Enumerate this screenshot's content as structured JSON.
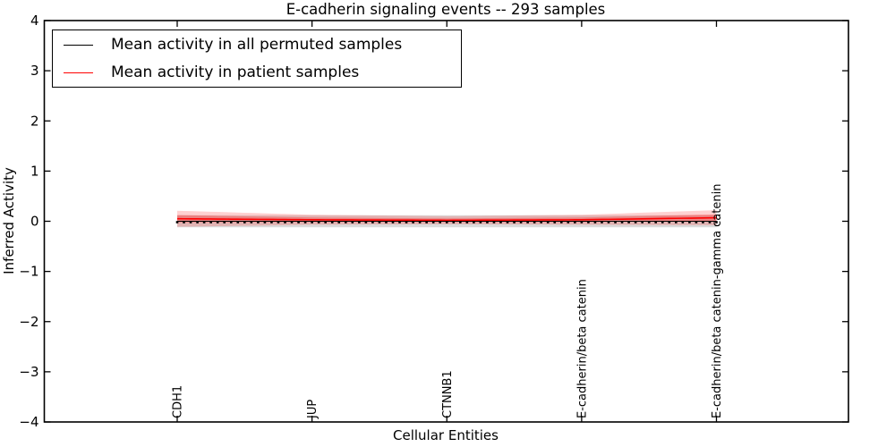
{
  "figure": {
    "title": "E-cadherin signaling events -- 293 samples",
    "background_color": "#ffffff",
    "frame_color": "#000000"
  },
  "chart_data": {
    "type": "line",
    "title": "E-cadherin signaling events -- 293 samples",
    "xlabel": "Cellular Entities",
    "ylabel": "Inferred Activity",
    "ylim": [
      -4,
      4
    ],
    "yticks": [
      4,
      3,
      2,
      1,
      0,
      -1,
      -2,
      -3,
      -4
    ],
    "grid": false,
    "n_entities": 81,
    "labeled_entities": [
      {
        "label": "CDH1",
        "index": 0
      },
      {
        "label": "JUP",
        "index": 20
      },
      {
        "label": "CTNNB1",
        "index": 40
      },
      {
        "label": "E-cadherin/beta catenin",
        "index": 60
      },
      {
        "label": "E-cadherin/beta catenin-gamma catenin",
        "index": 80
      }
    ],
    "series": [
      {
        "name": "Mean activity in all permuted samples",
        "color": "#000000",
        "marker": "square",
        "values_at_labeled_entities": [
          0.0,
          0.0,
          0.0,
          0.0,
          0.0
        ],
        "band_halfwidth_at_labeled_entities": [
          0.12,
          0.12,
          0.12,
          0.12,
          0.12
        ],
        "band_color": "#888888",
        "band_alpha": 0.3
      },
      {
        "name": "Mean activity in patient samples",
        "color": "#ff0000",
        "marker": "none",
        "values_at_labeled_entities": [
          0.05,
          0.03,
          0.02,
          0.03,
          0.07
        ],
        "band_halfwidth_at_labeled_entities": [
          0.16,
          0.1,
          0.08,
          0.1,
          0.15
        ],
        "band_color": "#ff0000",
        "band_alpha": 0.18
      }
    ],
    "legend": {
      "position": "upper left",
      "items": [
        {
          "label": "Mean activity in all permuted samples",
          "color": "#000000"
        },
        {
          "label": "Mean activity in patient samples",
          "color": "#ff0000"
        }
      ]
    }
  }
}
